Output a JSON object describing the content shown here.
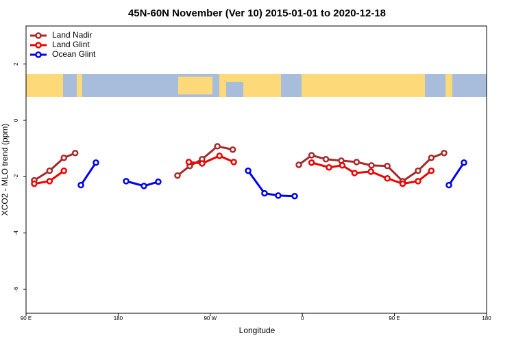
{
  "chart_data": {
    "type": "line",
    "title": "45N-60N November (Ver 10)   2015-01-01 to 2020-12-18",
    "xlabel": "Longitude",
    "ylabel": "XCO2 - MLO trend (ppm)",
    "xlim": [
      90,
      540
    ],
    "ylim": [
      -6.85,
      3.35
    ],
    "xticks": [
      {
        "value": 90,
        "label": "90 E"
      },
      180,
      {
        "value": 270,
        "label": "90 W"
      },
      {
        "value": 360,
        "label": "0"
      },
      {
        "value": 450,
        "label": "90 E"
      },
      {
        "value": 540,
        "label": "180"
      }
    ],
    "yticks": [
      -6,
      -4,
      -2,
      0,
      2
    ],
    "legend": "top-left",
    "series": [
      {
        "name": "Land Nadir",
        "color": "#a52a2a",
        "x": [
          98,
          113,
          127,
          138,
          null,
          238,
          250,
          262,
          277,
          292,
          null,
          356.5,
          369,
          383,
          398,
          413,
          427.5,
          443,
          458,
          473,
          486,
          498.5
        ],
        "values": [
          -2.13,
          -1.79,
          -1.33,
          -1.16,
          null,
          -1.96,
          -1.62,
          -1.38,
          -0.92,
          -1.04,
          null,
          -1.58,
          -1.24,
          -1.38,
          -1.43,
          -1.48,
          -1.6,
          -1.62,
          -2.16,
          -1.79,
          -1.33,
          -1.16
        ]
      },
      {
        "name": "Land Glint",
        "color": "#ee0000",
        "x": [
          98,
          113,
          127,
          null,
          249,
          262,
          279,
          293,
          null,
          369,
          386,
          399,
          411,
          427,
          443,
          458,
          473,
          486
        ],
        "values": [
          -2.25,
          -2.16,
          -1.79,
          null,
          -1.48,
          -1.53,
          -1.26,
          -1.48,
          null,
          -1.5,
          -1.67,
          -1.6,
          -1.87,
          -1.82,
          -2.06,
          -2.25,
          -2.16,
          -1.79
        ]
      },
      {
        "name": "Ocean Glint",
        "color": "#0000ee",
        "x": [
          143.6,
          158.3,
          null,
          187.8,
          205.2,
          219.2,
          null,
          307,
          323,
          336.4,
          352.5,
          null,
          503.2,
          517.9
        ],
        "values": [
          -2.3,
          -1.5,
          null,
          -2.16,
          -2.33,
          -2.18,
          null,
          -1.79,
          -2.59,
          -2.67,
          -2.69,
          null,
          -2.3,
          -1.5
        ]
      }
    ]
  }
}
